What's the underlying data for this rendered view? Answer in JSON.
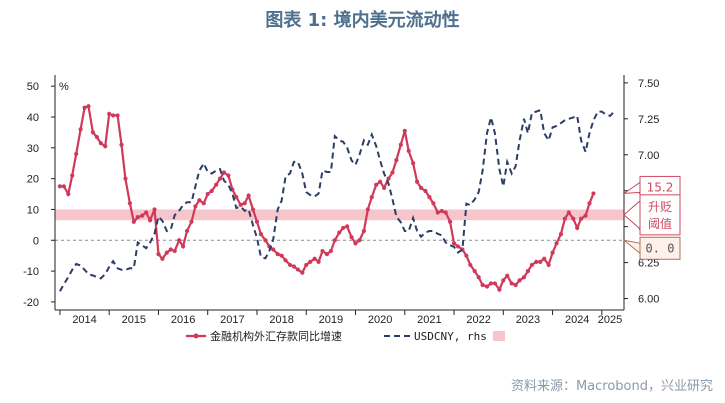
{
  "title": "图表 1:  境内美元流动性",
  "source": "资料来源：Macrobond，兴业研究",
  "chart_data": {
    "type": "line",
    "left_axis": {
      "unit": "%",
      "ticks": [
        50,
        40,
        30,
        20,
        10,
        0,
        -10,
        -20
      ],
      "ylim": [
        -21,
        52
      ]
    },
    "right_axis": {
      "ticks": [
        "7.50",
        "7.25",
        "7.00",
        "6.75",
        "6.50",
        "6.25",
        "6.00"
      ],
      "ylim": [
        5.955,
        7.52
      ]
    },
    "x_labels": [
      "2014",
      "2015",
      "2016",
      "2017",
      "2018",
      "2019",
      "2020",
      "2021",
      "2022",
      "2023",
      "2024",
      "2025"
    ],
    "xlim": [
      2013.9,
      2025.45
    ],
    "band": {
      "lower": 6.5,
      "upper": 10.0,
      "color": "#f7c5cc"
    },
    "zero_line": true,
    "colors": {
      "deposit": "#d0395a",
      "usdcny": "#2c3e66"
    },
    "series": [
      {
        "name": "金融机构外汇存款同比增速",
        "axis": "left",
        "style": "solid-markers",
        "points": [
          [
            2014.0,
            17.5
          ],
          [
            2014.08,
            17.5
          ],
          [
            2014.17,
            15
          ],
          [
            2014.25,
            21
          ],
          [
            2014.33,
            28
          ],
          [
            2014.42,
            36
          ],
          [
            2014.5,
            43
          ],
          [
            2014.58,
            43.5
          ],
          [
            2014.67,
            35
          ],
          [
            2014.75,
            33.5
          ],
          [
            2014.83,
            31.5
          ],
          [
            2014.92,
            30.5
          ],
          [
            2015.0,
            41
          ],
          [
            2015.08,
            40.5
          ],
          [
            2015.17,
            40.5
          ],
          [
            2015.25,
            31
          ],
          [
            2015.33,
            20
          ],
          [
            2015.42,
            12
          ],
          [
            2015.5,
            6
          ],
          [
            2015.58,
            7.5
          ],
          [
            2015.67,
            8
          ],
          [
            2015.75,
            9
          ],
          [
            2015.83,
            6.5
          ],
          [
            2015.92,
            10
          ],
          [
            2016.0,
            -4.5
          ],
          [
            2016.08,
            -6
          ],
          [
            2016.17,
            -4
          ],
          [
            2016.25,
            -3
          ],
          [
            2016.33,
            -3.5
          ],
          [
            2016.42,
            0
          ],
          [
            2016.5,
            -2
          ],
          [
            2016.58,
            3
          ],
          [
            2016.67,
            6
          ],
          [
            2016.75,
            11
          ],
          [
            2016.83,
            13
          ],
          [
            2016.92,
            12
          ],
          [
            2017.0,
            15
          ],
          [
            2017.08,
            16
          ],
          [
            2017.17,
            18
          ],
          [
            2017.25,
            20
          ],
          [
            2017.33,
            22
          ],
          [
            2017.42,
            21
          ],
          [
            2017.5,
            16.5
          ],
          [
            2017.58,
            14
          ],
          [
            2017.67,
            11.5
          ],
          [
            2017.75,
            12
          ],
          [
            2017.83,
            14.5
          ],
          [
            2017.92,
            10
          ],
          [
            2018.0,
            6
          ],
          [
            2018.08,
            2
          ],
          [
            2018.17,
            0
          ],
          [
            2018.25,
            -2
          ],
          [
            2018.33,
            -3
          ],
          [
            2018.42,
            -4.5
          ],
          [
            2018.5,
            -5
          ],
          [
            2018.58,
            -6.5
          ],
          [
            2018.67,
            -8
          ],
          [
            2018.75,
            -8.5
          ],
          [
            2018.83,
            -9.5
          ],
          [
            2018.92,
            -10.5
          ],
          [
            2019.0,
            -8
          ],
          [
            2019.08,
            -7
          ],
          [
            2019.17,
            -6
          ],
          [
            2019.25,
            -7
          ],
          [
            2019.33,
            -3.5
          ],
          [
            2019.42,
            -4.5
          ],
          [
            2019.5,
            -3.5
          ],
          [
            2019.58,
            0
          ],
          [
            2019.67,
            2.5
          ],
          [
            2019.75,
            4
          ],
          [
            2019.83,
            4.5
          ],
          [
            2019.92,
            1
          ],
          [
            2020.0,
            -1
          ],
          [
            2020.08,
            0
          ],
          [
            2020.17,
            3
          ],
          [
            2020.25,
            10
          ],
          [
            2020.33,
            14
          ],
          [
            2020.42,
            18
          ],
          [
            2020.5,
            19
          ],
          [
            2020.58,
            17
          ],
          [
            2020.67,
            20
          ],
          [
            2020.75,
            22
          ],
          [
            2020.83,
            26
          ],
          [
            2020.92,
            31
          ],
          [
            2021.0,
            35.5
          ],
          [
            2021.08,
            29
          ],
          [
            2021.17,
            25
          ],
          [
            2021.25,
            19
          ],
          [
            2021.33,
            17
          ],
          [
            2021.42,
            16
          ],
          [
            2021.5,
            14
          ],
          [
            2021.58,
            12
          ],
          [
            2021.67,
            9
          ],
          [
            2021.75,
            9.5
          ],
          [
            2021.83,
            9
          ],
          [
            2021.92,
            6
          ],
          [
            2022.0,
            -1
          ],
          [
            2022.08,
            -2
          ],
          [
            2022.17,
            -3
          ],
          [
            2022.25,
            -5
          ],
          [
            2022.33,
            -8
          ],
          [
            2022.42,
            -10
          ],
          [
            2022.5,
            -12
          ],
          [
            2022.58,
            -14.5
          ],
          [
            2022.67,
            -15
          ],
          [
            2022.75,
            -14
          ],
          [
            2022.83,
            -14
          ],
          [
            2022.92,
            -16
          ],
          [
            2023.0,
            -13
          ],
          [
            2023.08,
            -11.5
          ],
          [
            2023.17,
            -14
          ],
          [
            2023.25,
            -14.5
          ],
          [
            2023.33,
            -13
          ],
          [
            2023.42,
            -12
          ],
          [
            2023.5,
            -10
          ],
          [
            2023.58,
            -8
          ],
          [
            2023.67,
            -7
          ],
          [
            2023.75,
            -7
          ],
          [
            2023.83,
            -6
          ],
          [
            2023.92,
            -8
          ],
          [
            2024.0,
            -4
          ],
          [
            2024.08,
            -1
          ],
          [
            2024.17,
            2
          ],
          [
            2024.25,
            7
          ],
          [
            2024.33,
            9
          ],
          [
            2024.42,
            7
          ],
          [
            2024.5,
            4
          ],
          [
            2024.58,
            7
          ],
          [
            2024.67,
            8
          ],
          [
            2024.75,
            12
          ],
          [
            2024.83,
            15.2
          ]
        ]
      },
      {
        "name": "USDCNY, rhs",
        "axis": "right",
        "style": "dashed",
        "points": [
          [
            2014.0,
            6.05
          ],
          [
            2014.08,
            6.1
          ],
          [
            2014.17,
            6.15
          ],
          [
            2014.25,
            6.2
          ],
          [
            2014.33,
            6.24
          ],
          [
            2014.42,
            6.23
          ],
          [
            2014.5,
            6.2
          ],
          [
            2014.58,
            6.17
          ],
          [
            2014.67,
            6.16
          ],
          [
            2014.75,
            6.15
          ],
          [
            2014.83,
            6.14
          ],
          [
            2014.92,
            6.17
          ],
          [
            2015.0,
            6.22
          ],
          [
            2015.08,
            6.26
          ],
          [
            2015.17,
            6.21
          ],
          [
            2015.25,
            6.2
          ],
          [
            2015.33,
            6.2
          ],
          [
            2015.42,
            6.21
          ],
          [
            2015.5,
            6.21
          ],
          [
            2015.58,
            6.39
          ],
          [
            2015.67,
            6.37
          ],
          [
            2015.75,
            6.35
          ],
          [
            2015.83,
            6.39
          ],
          [
            2015.92,
            6.45
          ],
          [
            2016.0,
            6.57
          ],
          [
            2016.08,
            6.54
          ],
          [
            2016.17,
            6.47
          ],
          [
            2016.25,
            6.48
          ],
          [
            2016.33,
            6.58
          ],
          [
            2016.42,
            6.61
          ],
          [
            2016.5,
            6.65
          ],
          [
            2016.58,
            6.67
          ],
          [
            2016.67,
            6.67
          ],
          [
            2016.75,
            6.78
          ],
          [
            2016.83,
            6.89
          ],
          [
            2016.92,
            6.94
          ],
          [
            2017.0,
            6.88
          ],
          [
            2017.08,
            6.87
          ],
          [
            2017.17,
            6.89
          ],
          [
            2017.25,
            6.9
          ],
          [
            2017.33,
            6.82
          ],
          [
            2017.42,
            6.79
          ],
          [
            2017.5,
            6.73
          ],
          [
            2017.58,
            6.63
          ],
          [
            2017.67,
            6.64
          ],
          [
            2017.75,
            6.61
          ],
          [
            2017.83,
            6.62
          ],
          [
            2017.92,
            6.51
          ],
          [
            2018.0,
            6.42
          ],
          [
            2018.08,
            6.29
          ],
          [
            2018.17,
            6.28
          ],
          [
            2018.25,
            6.33
          ],
          [
            2018.33,
            6.41
          ],
          [
            2018.42,
            6.62
          ],
          [
            2018.5,
            6.68
          ],
          [
            2018.58,
            6.85
          ],
          [
            2018.67,
            6.87
          ],
          [
            2018.75,
            6.95
          ],
          [
            2018.83,
            6.95
          ],
          [
            2018.92,
            6.87
          ],
          [
            2019.0,
            6.74
          ],
          [
            2019.08,
            6.72
          ],
          [
            2019.17,
            6.71
          ],
          [
            2019.25,
            6.73
          ],
          [
            2019.33,
            6.89
          ],
          [
            2019.42,
            6.88
          ],
          [
            2019.5,
            6.88
          ],
          [
            2019.58,
            7.13
          ],
          [
            2019.67,
            7.1
          ],
          [
            2019.75,
            7.09
          ],
          [
            2019.83,
            7.05
          ],
          [
            2019.92,
            6.96
          ],
          [
            2020.0,
            6.93
          ],
          [
            2020.08,
            7.0
          ],
          [
            2020.17,
            7.1
          ],
          [
            2020.25,
            7.07
          ],
          [
            2020.33,
            7.14
          ],
          [
            2020.42,
            7.06
          ],
          [
            2020.5,
            6.96
          ],
          [
            2020.58,
            6.87
          ],
          [
            2020.67,
            6.8
          ],
          [
            2020.75,
            6.69
          ],
          [
            2020.83,
            6.57
          ],
          [
            2020.92,
            6.53
          ],
          [
            2021.0,
            6.47
          ],
          [
            2021.08,
            6.47
          ],
          [
            2021.17,
            6.56
          ],
          [
            2021.25,
            6.47
          ],
          [
            2021.33,
            6.43
          ],
          [
            2021.42,
            6.46
          ],
          [
            2021.5,
            6.47
          ],
          [
            2021.58,
            6.47
          ],
          [
            2021.67,
            6.45
          ],
          [
            2021.75,
            6.44
          ],
          [
            2021.83,
            6.39
          ],
          [
            2021.92,
            6.37
          ],
          [
            2022.0,
            6.36
          ],
          [
            2022.08,
            6.32
          ],
          [
            2022.17,
            6.34
          ],
          [
            2022.25,
            6.66
          ],
          [
            2022.33,
            6.65
          ],
          [
            2022.42,
            6.69
          ],
          [
            2022.5,
            6.74
          ],
          [
            2022.58,
            6.89
          ],
          [
            2022.67,
            7.15
          ],
          [
            2022.75,
            7.26
          ],
          [
            2022.83,
            7.15
          ],
          [
            2022.92,
            6.9
          ],
          [
            2023.0,
            6.78
          ],
          [
            2023.08,
            6.95
          ],
          [
            2023.17,
            6.87
          ],
          [
            2023.25,
            6.92
          ],
          [
            2023.33,
            7.1
          ],
          [
            2023.42,
            7.25
          ],
          [
            2023.5,
            7.15
          ],
          [
            2023.58,
            7.29
          ],
          [
            2023.67,
            7.3
          ],
          [
            2023.75,
            7.31
          ],
          [
            2023.83,
            7.15
          ],
          [
            2023.92,
            7.1
          ],
          [
            2024.0,
            7.19
          ],
          [
            2024.08,
            7.2
          ],
          [
            2024.17,
            7.22
          ],
          [
            2024.25,
            7.24
          ],
          [
            2024.33,
            7.25
          ],
          [
            2024.42,
            7.26
          ],
          [
            2024.5,
            7.27
          ],
          [
            2024.58,
            7.1
          ],
          [
            2024.67,
            7.02
          ],
          [
            2024.75,
            7.15
          ],
          [
            2024.83,
            7.24
          ],
          [
            2024.92,
            7.3
          ],
          [
            2025.0,
            7.3
          ],
          [
            2025.08,
            7.28
          ],
          [
            2025.17,
            7.27
          ],
          [
            2025.25,
            7.3
          ]
        ]
      },
      {
        "name": "",
        "axis": "left",
        "style": "band-swatch"
      }
    ],
    "callouts": [
      {
        "text": "15.2",
        "value": 15.2,
        "axis": "left",
        "style": "red"
      },
      {
        "text": "升贬",
        "text2": "阈值",
        "value": 8.25,
        "axis": "left",
        "style": "red"
      },
      {
        "text": "0. 0",
        "value": 0.0,
        "axis": "left",
        "style": "grey"
      }
    ]
  }
}
